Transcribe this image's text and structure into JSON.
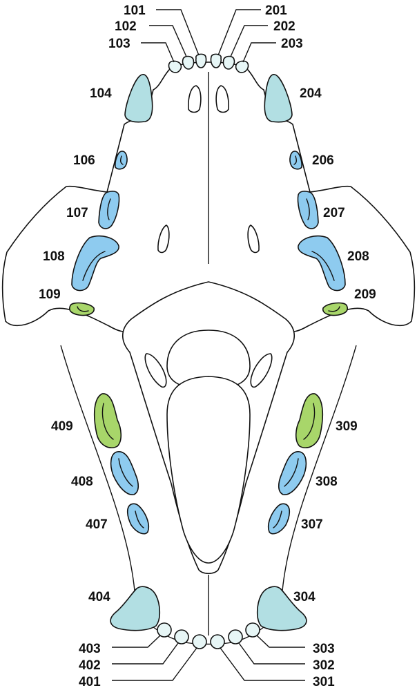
{
  "colors": {
    "incisor": "#e7f6f6",
    "canine": "#b2dfe3",
    "premolar": "#8ecbef",
    "molar": "#a8d66a",
    "outline": "#111111"
  },
  "upper": {
    "right": {
      "t101": "101",
      "t102": "102",
      "t103": "103",
      "t104": "104",
      "t106": "106",
      "t107": "107",
      "t108": "108",
      "t109": "109"
    },
    "left": {
      "t201": "201",
      "t202": "202",
      "t203": "203",
      "t204": "204",
      "t206": "206",
      "t207": "207",
      "t208": "208",
      "t209": "209"
    }
  },
  "lower": {
    "left": {
      "t301": "301",
      "t302": "302",
      "t303": "303",
      "t304": "304",
      "t307": "307",
      "t308": "308",
      "t309": "309"
    },
    "right": {
      "t401": "401",
      "t402": "402",
      "t403": "403",
      "t404": "404",
      "t407": "407",
      "t408": "408",
      "t409": "409"
    }
  }
}
